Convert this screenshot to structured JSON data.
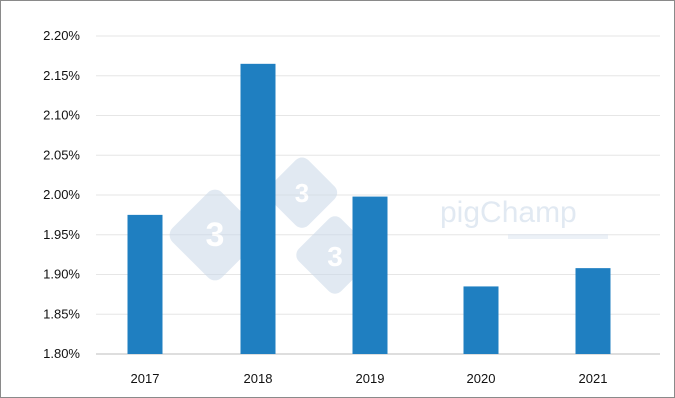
{
  "chart_data": {
    "type": "bar",
    "categories": [
      "2017",
      "2018",
      "2019",
      "2020",
      "2021"
    ],
    "values": [
      1.975,
      2.165,
      1.998,
      1.885,
      1.908
    ],
    "y_tick_labels": [
      "1.80%",
      "1.85%",
      "1.90%",
      "1.95%",
      "2.00%",
      "2.05%",
      "2.10%",
      "2.15%",
      "2.20%"
    ],
    "ylim": [
      1.8,
      2.2
    ],
    "grid": true,
    "bar_color": "#1f7fc1"
  },
  "watermark": {
    "brand": "pigChamp",
    "badge_digits": [
      "3",
      "3",
      "3"
    ],
    "color": "#c9d8e8"
  }
}
